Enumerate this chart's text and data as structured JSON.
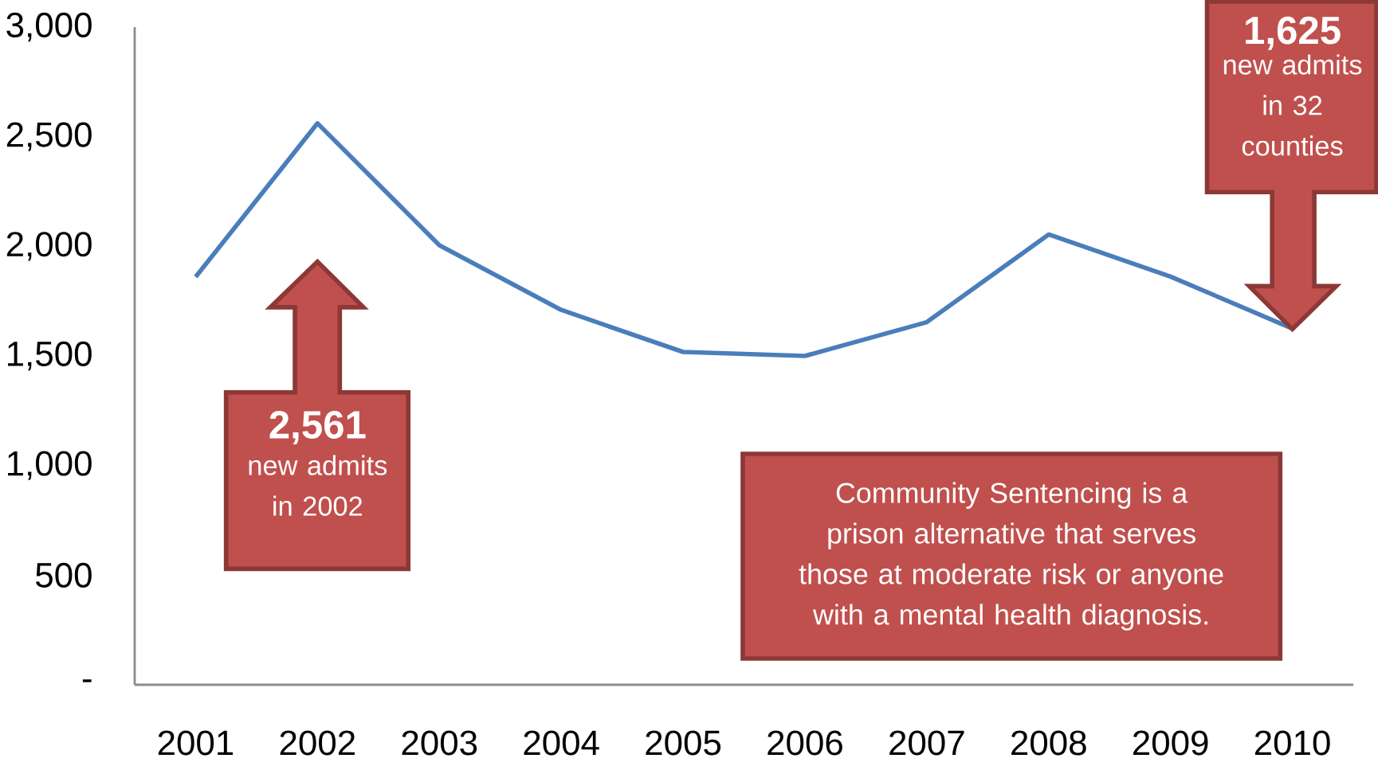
{
  "chart_data": {
    "type": "line",
    "categories": [
      "2001",
      "2002",
      "2003",
      "2004",
      "2005",
      "2006",
      "2007",
      "2008",
      "2009",
      "2010"
    ],
    "series": [
      {
        "color": "#4a7ebb",
        "values": [
          1860,
          2561,
          2005,
          1710,
          1518,
          1500,
          1654,
          2054,
          1862,
          1625
        ]
      }
    ],
    "ylim": [
      0,
      3000
    ],
    "yticks": [
      {
        "value": 0,
        "label": "-"
      },
      500,
      {
        "value": 1000,
        "label": "1,000"
      },
      {
        "value": 1500,
        "label": "1,500"
      },
      {
        "value": 2000,
        "label": "2,000"
      },
      {
        "value": 2500,
        "label": "2,500"
      },
      {
        "value": 3000,
        "label": "3,000"
      }
    ],
    "annotations": [
      "2,561",
      "new admits in 2002",
      "1,625",
      "new admits in  32 counties",
      "Community Sentencing is a prison alternative that serves those at moderate risk or anyone with a mental health diagnosis."
    ]
  }
}
